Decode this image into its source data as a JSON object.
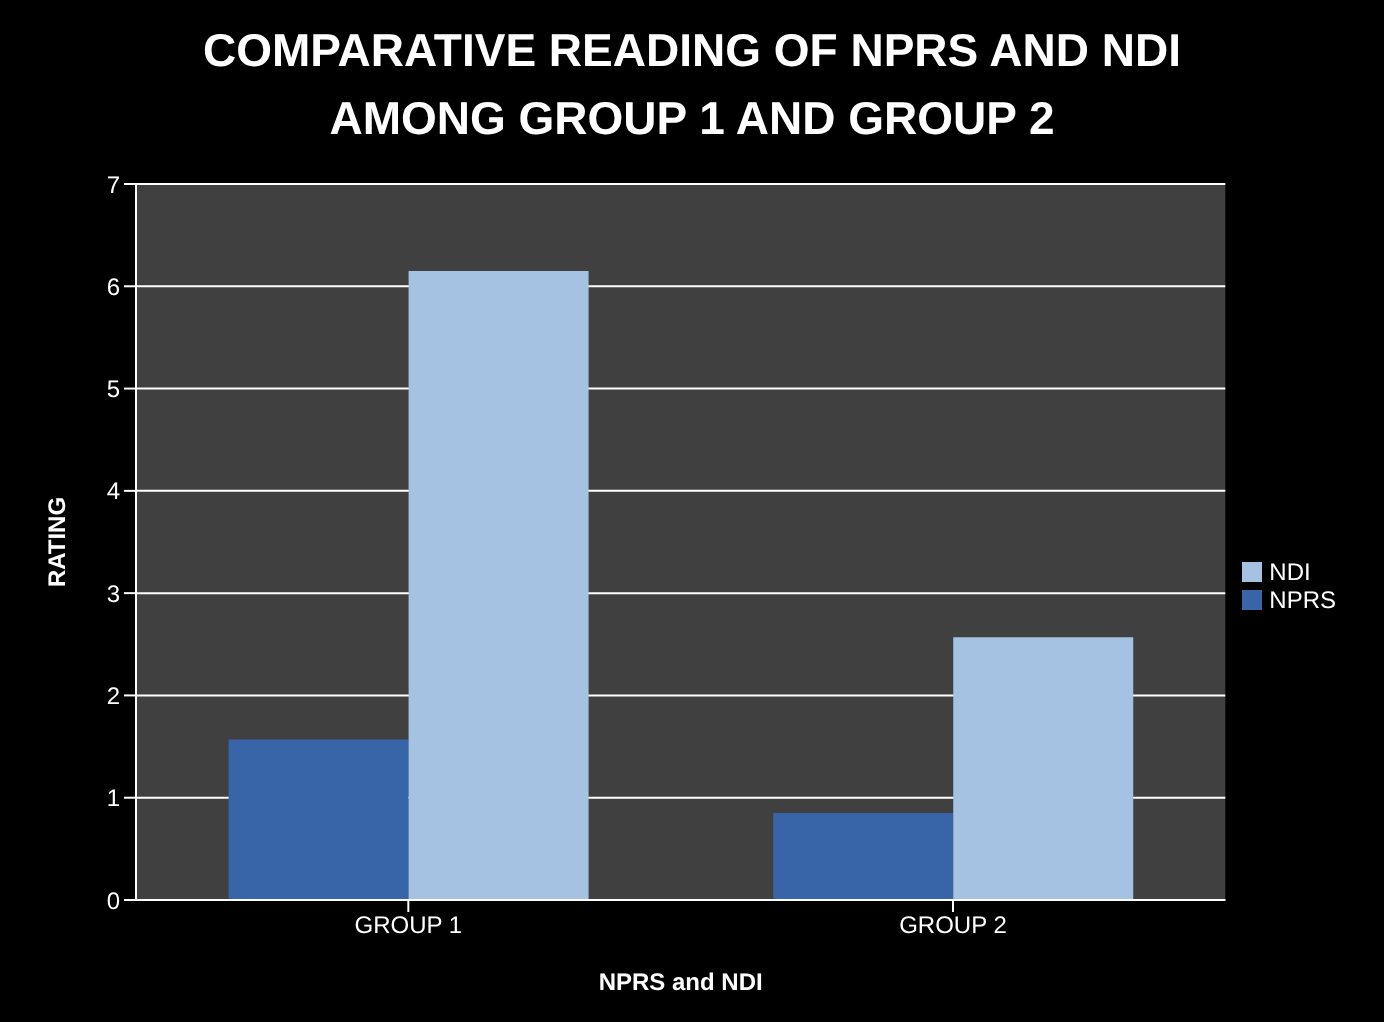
{
  "chart_data": {
    "type": "bar",
    "title": "COMPARATIVE READING OF NPRS AND NDI AMONG GROUP 1 AND GROUP 2",
    "xlabel": "NPRS and NDI",
    "ylabel": "RATING",
    "categories": [
      "GROUP 1",
      "GROUP 2"
    ],
    "series": [
      {
        "name": "NPRS",
        "color": "#3765a8",
        "values": [
          1.57,
          0.85
        ]
      },
      {
        "name": "NDI",
        "color": "#a6c2e2",
        "values": [
          6.15,
          2.57
        ]
      }
    ],
    "ylim": [
      0,
      7
    ],
    "yticks": [
      0,
      1,
      2,
      3,
      4,
      5,
      6,
      7
    ],
    "grid": "y",
    "legend": "right"
  }
}
